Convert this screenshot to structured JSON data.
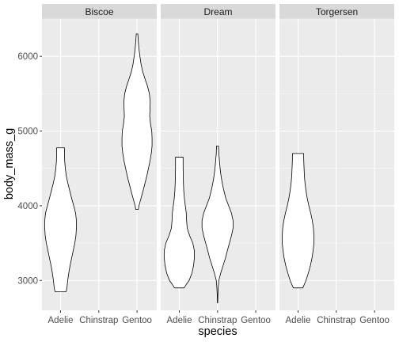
{
  "chart_data": {
    "type": "violin",
    "facet_variable": "island",
    "panels": [
      "Biscoe",
      "Dream",
      "Torgersen"
    ],
    "categories": [
      "Adelie",
      "Chinstrap",
      "Gentoo"
    ],
    "xlabel": "species",
    "ylabel": "body_mass_g",
    "ylim": [
      2600,
      6500
    ],
    "y_ticks": [
      3000,
      4000,
      5000,
      6000
    ],
    "grid": true,
    "legend": "none",
    "colors": {
      "panel_background": "#ebebeb",
      "grid_major": "#ffffff",
      "grid_minor": "#f5f5f5",
      "strip_background": "#d9d9d9",
      "violin_fill": "#ffffff",
      "violin_outline": "#000000"
    },
    "violins": [
      {
        "panel": "Biscoe",
        "category": "Adelie",
        "profile": [
          [
            2850,
            0.35
          ],
          [
            2900,
            0.4
          ],
          [
            3000,
            0.45
          ],
          [
            3100,
            0.52
          ],
          [
            3200,
            0.6
          ],
          [
            3300,
            0.7
          ],
          [
            3400,
            0.8
          ],
          [
            3500,
            0.9
          ],
          [
            3600,
            0.97
          ],
          [
            3700,
            1.0
          ],
          [
            3800,
            1.0
          ],
          [
            3900,
            0.95
          ],
          [
            4000,
            0.83
          ],
          [
            4100,
            0.7
          ],
          [
            4200,
            0.58
          ],
          [
            4300,
            0.46
          ],
          [
            4400,
            0.36
          ],
          [
            4500,
            0.3
          ],
          [
            4600,
            0.26
          ],
          [
            4700,
            0.25
          ],
          [
            4775,
            0.25
          ]
        ]
      },
      {
        "panel": "Biscoe",
        "category": "Gentoo",
        "profile": [
          [
            3950,
            0.08
          ],
          [
            4000,
            0.12
          ],
          [
            4100,
            0.25
          ],
          [
            4200,
            0.38
          ],
          [
            4300,
            0.5
          ],
          [
            4400,
            0.62
          ],
          [
            4500,
            0.72
          ],
          [
            4600,
            0.82
          ],
          [
            4700,
            0.9
          ],
          [
            4800,
            0.95
          ],
          [
            4900,
            0.95
          ],
          [
            5000,
            0.93
          ],
          [
            5100,
            0.85
          ],
          [
            5200,
            0.8
          ],
          [
            5300,
            0.82
          ],
          [
            5400,
            0.83
          ],
          [
            5500,
            0.78
          ],
          [
            5600,
            0.66
          ],
          [
            5700,
            0.5
          ],
          [
            5800,
            0.35
          ],
          [
            5900,
            0.25
          ],
          [
            6000,
            0.18
          ],
          [
            6100,
            0.12
          ],
          [
            6200,
            0.08
          ],
          [
            6300,
            0.05
          ]
        ]
      },
      {
        "panel": "Dream",
        "category": "Adelie",
        "profile": [
          [
            2900,
            0.3
          ],
          [
            2950,
            0.45
          ],
          [
            3000,
            0.62
          ],
          [
            3100,
            0.8
          ],
          [
            3200,
            0.9
          ],
          [
            3300,
            0.95
          ],
          [
            3400,
            0.95
          ],
          [
            3500,
            0.85
          ],
          [
            3600,
            0.65
          ],
          [
            3700,
            0.5
          ],
          [
            3800,
            0.46
          ],
          [
            3900,
            0.44
          ],
          [
            4000,
            0.38
          ],
          [
            4100,
            0.32
          ],
          [
            4200,
            0.28
          ],
          [
            4300,
            0.26
          ],
          [
            4400,
            0.25
          ],
          [
            4500,
            0.24
          ],
          [
            4600,
            0.24
          ],
          [
            4650,
            0.24
          ]
        ]
      },
      {
        "panel": "Dream",
        "category": "Chinstrap",
        "profile": [
          [
            2700,
            0.01
          ],
          [
            2800,
            0.02
          ],
          [
            2900,
            0.04
          ],
          [
            3000,
            0.08
          ],
          [
            3100,
            0.2
          ],
          [
            3200,
            0.35
          ],
          [
            3300,
            0.5
          ],
          [
            3400,
            0.62
          ],
          [
            3500,
            0.75
          ],
          [
            3600,
            0.88
          ],
          [
            3700,
            0.98
          ],
          [
            3800,
            0.98
          ],
          [
            3900,
            0.88
          ],
          [
            4000,
            0.7
          ],
          [
            4100,
            0.52
          ],
          [
            4200,
            0.4
          ],
          [
            4300,
            0.3
          ],
          [
            4400,
            0.22
          ],
          [
            4500,
            0.16
          ],
          [
            4600,
            0.12
          ],
          [
            4700,
            0.08
          ],
          [
            4800,
            0.06
          ]
        ]
      },
      {
        "panel": "Torgersen",
        "category": "Adelie",
        "profile": [
          [
            2900,
            0.3
          ],
          [
            2950,
            0.4
          ],
          [
            3000,
            0.5
          ],
          [
            3100,
            0.65
          ],
          [
            3200,
            0.78
          ],
          [
            3300,
            0.88
          ],
          [
            3400,
            0.95
          ],
          [
            3500,
            1.0
          ],
          [
            3600,
            1.0
          ],
          [
            3700,
            0.97
          ],
          [
            3800,
            0.9
          ],
          [
            3900,
            0.8
          ],
          [
            4000,
            0.68
          ],
          [
            4100,
            0.58
          ],
          [
            4200,
            0.5
          ],
          [
            4300,
            0.44
          ],
          [
            4400,
            0.4
          ],
          [
            4500,
            0.38
          ],
          [
            4600,
            0.36
          ],
          [
            4700,
            0.35
          ]
        ]
      }
    ]
  }
}
